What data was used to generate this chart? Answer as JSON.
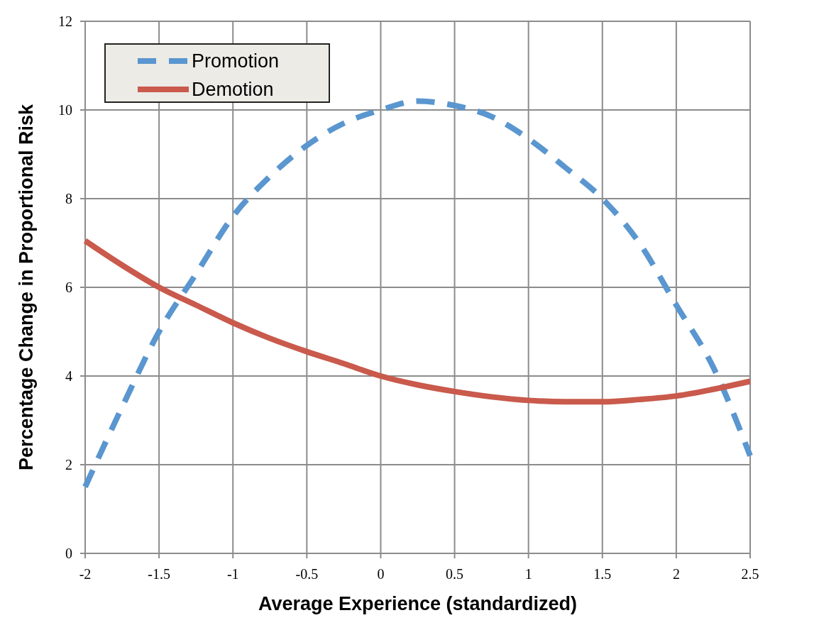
{
  "chart_data": {
    "type": "line",
    "xlabel": "Average Experience (standardized)",
    "ylabel": "Percentage Change in Proportional Risk",
    "x": [
      -2,
      -1.75,
      -1.5,
      -1.25,
      -1,
      -0.75,
      -0.5,
      -0.25,
      0,
      0.25,
      0.5,
      0.75,
      1,
      1.25,
      1.5,
      1.75,
      2,
      2.25,
      2.5
    ],
    "series": [
      {
        "name": "Promotion",
        "color": "#5a96cf",
        "line_style": "dashed",
        "values": [
          1.5,
          3.3,
          5.0,
          6.3,
          7.6,
          8.5,
          9.2,
          9.7,
          10.0,
          10.2,
          10.1,
          9.85,
          9.35,
          8.7,
          8.0,
          7.0,
          5.6,
          4.2,
          2.2
        ]
      },
      {
        "name": "Demotion",
        "color": "#c95a4c",
        "line_style": "solid",
        "values": [
          7.05,
          6.5,
          6.0,
          5.6,
          5.2,
          4.85,
          4.55,
          4.28,
          4.0,
          3.8,
          3.65,
          3.53,
          3.45,
          3.42,
          3.42,
          3.47,
          3.55,
          3.7,
          3.88
        ]
      }
    ],
    "xlim": [
      -2,
      2.5
    ],
    "xticks": [
      -2,
      -1.5,
      -1,
      -0.5,
      0,
      0.5,
      1,
      1.5,
      2,
      2.5
    ],
    "ylim": [
      0,
      12
    ],
    "yticks": [
      0,
      2,
      4,
      6,
      8,
      10,
      12
    ],
    "grid": true,
    "legend": "top left",
    "marker": "none"
  }
}
